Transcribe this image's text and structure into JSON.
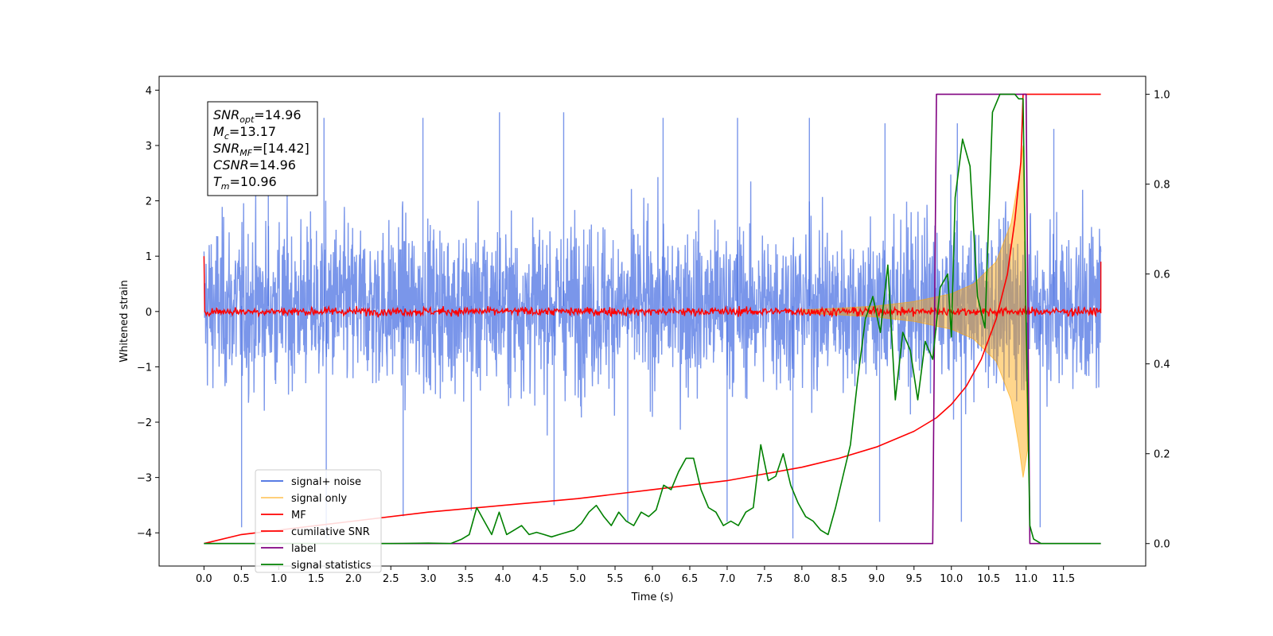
{
  "chart_data": {
    "type": "line",
    "xlabel": "Time (s)",
    "ylabel": "Whitened strain",
    "xlim": [
      -0.6,
      12.6
    ],
    "ylim": [
      -4.6,
      4.25
    ],
    "y2lim": [
      -0.05,
      1.04
    ],
    "x_ticks": [
      "0.0",
      "0.5",
      "1.0",
      "1.5",
      "2.0",
      "2.5",
      "3.0",
      "3.5",
      "4.0",
      "4.5",
      "5.0",
      "5.5",
      "6.0",
      "6.5",
      "7.0",
      "7.5",
      "8.0",
      "8.5",
      "9.0",
      "9.5",
      "10.0",
      "10.5",
      "11.0",
      "11.5"
    ],
    "y_ticks": [
      4,
      3,
      2,
      1,
      0,
      -1,
      -2,
      -3,
      -4
    ],
    "y_tick_labels": [
      "4",
      "3",
      "2",
      "1",
      "0",
      "−1",
      "−2",
      "−3",
      "−4"
    ],
    "y2_ticks": [
      1.0,
      0.8,
      0.6,
      0.4,
      0.2,
      0.0
    ],
    "y2_tick_labels": [
      "1.0",
      "0.8",
      "0.6",
      "0.4",
      "0.2",
      "0.0"
    ],
    "annotations": [
      {
        "base": "SNR",
        "sub": "opt",
        "value": "=14.96"
      },
      {
        "base": "M",
        "sub": "c",
        "value": "=13.17"
      },
      {
        "base": "SNR",
        "sub": "MF",
        "value": "=[14.42]"
      },
      {
        "base": "CSNR",
        "sub": "",
        "value": "=14.96"
      },
      {
        "base": "T",
        "sub": "m",
        "value": "=10.96"
      }
    ],
    "legend": {
      "placement": "lower-left",
      "entries": [
        {
          "name": "signal+ noise",
          "color": "#4169e1"
        },
        {
          "name": "signal only",
          "color": "#ffa500"
        },
        {
          "name": "MF",
          "color": "#ff0000"
        },
        {
          "name": "cumilative SNR",
          "color": "#ff0000"
        },
        {
          "name": "label",
          "color": "#800080"
        },
        {
          "name": "signal statistics",
          "color": "#008000"
        }
      ]
    },
    "series": [
      {
        "name": "signal+ noise",
        "axis": "left",
        "kind": "noise band",
        "color": "#4169e1",
        "x_range": [
          0.0,
          12.0
        ],
        "typical_range": [
          -1.8,
          2.0
        ],
        "spikes_max": [
          3.6,
          3.5,
          3.5,
          3.6,
          3.6,
          3.5,
          3.5,
          3.5,
          3.4,
          3.4,
          3.3
        ],
        "spikes_min": [
          -3.9,
          -4.1,
          -3.7,
          -3.6,
          -3.5,
          -3.8,
          -3.8,
          -4.1,
          -3.8,
          -3.8,
          -3.9
        ]
      },
      {
        "name": "signal only",
        "axis": "left",
        "kind": "chirp envelope",
        "color": "#ffa500",
        "x": [
          8.0,
          8.5,
          9.0,
          9.5,
          10.0,
          10.3,
          10.6,
          10.8,
          10.9,
          10.96
        ],
        "amplitude": [
          0.03,
          0.06,
          0.1,
          0.18,
          0.32,
          0.5,
          0.9,
          1.6,
          2.4,
          3.0
        ]
      },
      {
        "name": "MF",
        "axis": "left",
        "kind": "noisy flat",
        "color": "#ff0000",
        "x_range": [
          0.0,
          12.0
        ],
        "level": 0.0,
        "spread": 0.12,
        "edge_values": [
          1.0,
          0.9
        ]
      },
      {
        "name": "cumilative SNR",
        "axis": "right",
        "color": "#ff0000",
        "x": [
          0.0,
          0.5,
          1.0,
          2.0,
          3.0,
          4.0,
          5.0,
          6.0,
          7.0,
          7.5,
          8.0,
          8.5,
          9.0,
          9.5,
          9.8,
          10.0,
          10.2,
          10.4,
          10.6,
          10.75,
          10.85,
          10.93,
          10.96,
          11.0,
          11.5,
          12.0
        ],
        "values": [
          0.0,
          0.02,
          0.03,
          0.05,
          0.07,
          0.085,
          0.1,
          0.12,
          0.14,
          0.155,
          0.17,
          0.19,
          0.215,
          0.25,
          0.28,
          0.31,
          0.35,
          0.41,
          0.5,
          0.6,
          0.72,
          0.85,
          1.0,
          1.0,
          1.0,
          1.0
        ]
      },
      {
        "name": "label",
        "axis": "right",
        "color": "#800080",
        "x": [
          0.0,
          9.75,
          9.8,
          10.96,
          11.0,
          11.05,
          12.0
        ],
        "values": [
          0.0,
          0.0,
          1.0,
          1.0,
          1.0,
          0.0,
          0.0
        ]
      },
      {
        "name": "signal statistics",
        "axis": "right",
        "color": "#008000",
        "x": [
          0.0,
          0.5,
          1.0,
          1.5,
          2.0,
          2.5,
          3.0,
          3.3,
          3.45,
          3.55,
          3.65,
          3.75,
          3.85,
          3.95,
          4.05,
          4.15,
          4.25,
          4.35,
          4.45,
          4.55,
          4.65,
          4.75,
          4.85,
          4.95,
          5.05,
          5.15,
          5.25,
          5.35,
          5.45,
          5.55,
          5.65,
          5.75,
          5.85,
          5.95,
          6.05,
          6.15,
          6.25,
          6.35,
          6.45,
          6.55,
          6.65,
          6.75,
          6.85,
          6.95,
          7.05,
          7.15,
          7.25,
          7.35,
          7.45,
          7.55,
          7.65,
          7.75,
          7.85,
          7.95,
          8.05,
          8.15,
          8.25,
          8.35,
          8.45,
          8.55,
          8.65,
          8.75,
          8.85,
          8.95,
          9.05,
          9.15,
          9.25,
          9.35,
          9.45,
          9.55,
          9.65,
          9.75,
          9.85,
          9.95,
          10.0,
          10.05,
          10.15,
          10.25,
          10.35,
          10.45,
          10.55,
          10.65,
          10.75,
          10.85,
          10.9,
          10.96,
          11.0,
          11.05,
          11.1,
          11.2,
          11.5,
          12.0
        ],
        "values": [
          0.0,
          0.0,
          0.0,
          0.0,
          0.0,
          0.0,
          0.001,
          0.0,
          0.01,
          0.02,
          0.08,
          0.05,
          0.02,
          0.07,
          0.02,
          0.03,
          0.04,
          0.02,
          0.025,
          0.02,
          0.015,
          0.02,
          0.025,
          0.03,
          0.045,
          0.07,
          0.085,
          0.06,
          0.04,
          0.07,
          0.05,
          0.04,
          0.07,
          0.06,
          0.075,
          0.13,
          0.12,
          0.16,
          0.19,
          0.19,
          0.12,
          0.08,
          0.07,
          0.04,
          0.05,
          0.04,
          0.07,
          0.08,
          0.22,
          0.14,
          0.15,
          0.2,
          0.13,
          0.09,
          0.06,
          0.05,
          0.03,
          0.02,
          0.08,
          0.15,
          0.22,
          0.37,
          0.5,
          0.55,
          0.47,
          0.62,
          0.32,
          0.47,
          0.43,
          0.32,
          0.45,
          0.41,
          0.57,
          0.6,
          0.46,
          0.77,
          0.9,
          0.84,
          0.55,
          0.48,
          0.96,
          1.0,
          1.0,
          1.0,
          0.99,
          0.99,
          0.5,
          0.04,
          0.01,
          0.0,
          0.0,
          0.0
        ]
      }
    ]
  }
}
